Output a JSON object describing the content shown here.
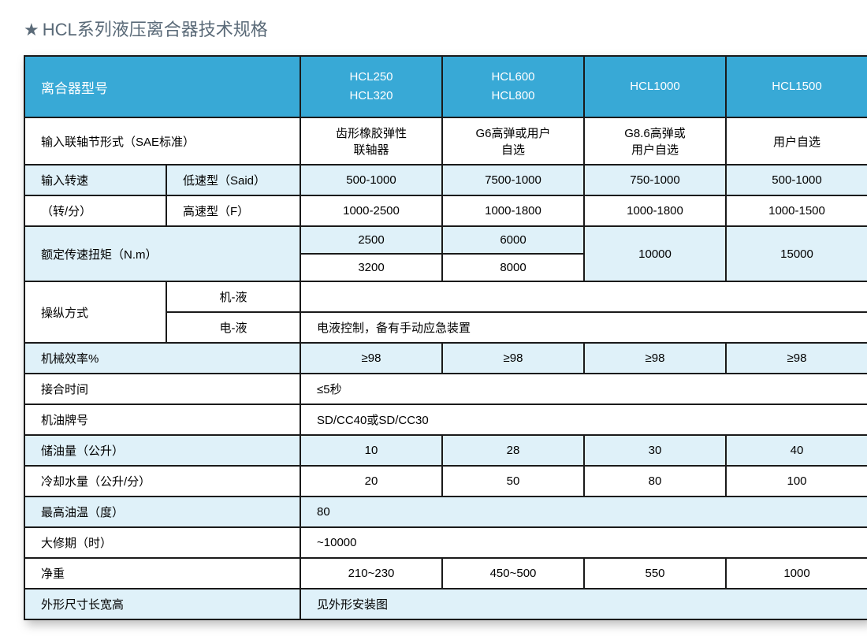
{
  "title": "HCL系列液压离合器技术规格",
  "star": "★",
  "header": {
    "label": "离合器型号",
    "cols": [
      [
        "HCL250",
        "HCL320"
      ],
      [
        "HCL600",
        "HCL800"
      ],
      [
        "HCL1000"
      ],
      [
        "HCL1500"
      ]
    ]
  },
  "rows": {
    "coupling": {
      "label": "输入联轴节形式（SAE标准）",
      "vals": [
        "齿形橡胶弹性\n联轴器",
        "G6高弹或用户\n自选",
        "G8.6高弹或\n用户自选",
        "用户自选"
      ]
    },
    "speed_label": "输入转速",
    "speed_unit": "（转/分）",
    "speed_low": {
      "label": "低速型（Said）",
      "vals": [
        "500-1000",
        "7500-1000",
        "750-1000",
        "500-1000"
      ]
    },
    "speed_high": {
      "label": "高速型（F）",
      "vals": [
        "1000-2500",
        "1000-1800",
        "1000-1800",
        "1000-1500"
      ]
    },
    "torque": {
      "label": "额定传速扭矩（N.m）",
      "row1": [
        "2500",
        "6000"
      ],
      "row2": [
        "3200",
        "8000"
      ],
      "merged": [
        "10000",
        "15000"
      ]
    },
    "control": {
      "label": "操纵方式",
      "r1": {
        "label": "机-液",
        "val": ""
      },
      "r2": {
        "label": "电-液",
        "val": "电液控制，备有手动应急装置"
      }
    },
    "efficiency": {
      "label": "机械效率%",
      "vals": [
        "≥98",
        "≥98",
        "≥98",
        "≥98"
      ]
    },
    "engage_time": {
      "label": "接合时间",
      "val": "≤5秒"
    },
    "oil_grade": {
      "label": "机油牌号",
      "val": "SD/CC40或SD/CC30"
    },
    "oil_cap": {
      "label": "储油量（公升）",
      "vals": [
        "10",
        "28",
        "30",
        "40"
      ]
    },
    "cooling": {
      "label": "冷却水量（公升/分）",
      "vals": [
        "20",
        "50",
        "80",
        "100"
      ]
    },
    "max_temp": {
      "label": "最高油温（度）",
      "val": "80"
    },
    "overhaul": {
      "label": "大修期（时）",
      "val": "~10000"
    },
    "net_weight": {
      "label": "净重",
      "vals": [
        "210~230",
        "450~500",
        "550",
        "1000"
      ]
    },
    "dims": {
      "label": "外形尺寸长宽高",
      "val": "见外形安装图"
    }
  },
  "colors": {
    "header_bg": "#38a9d6",
    "header_text": "#ffffff",
    "tint": "#dff1f9",
    "white": "#ffffff",
    "border": "#1a1a1a",
    "title_text": "#5a6a78"
  }
}
